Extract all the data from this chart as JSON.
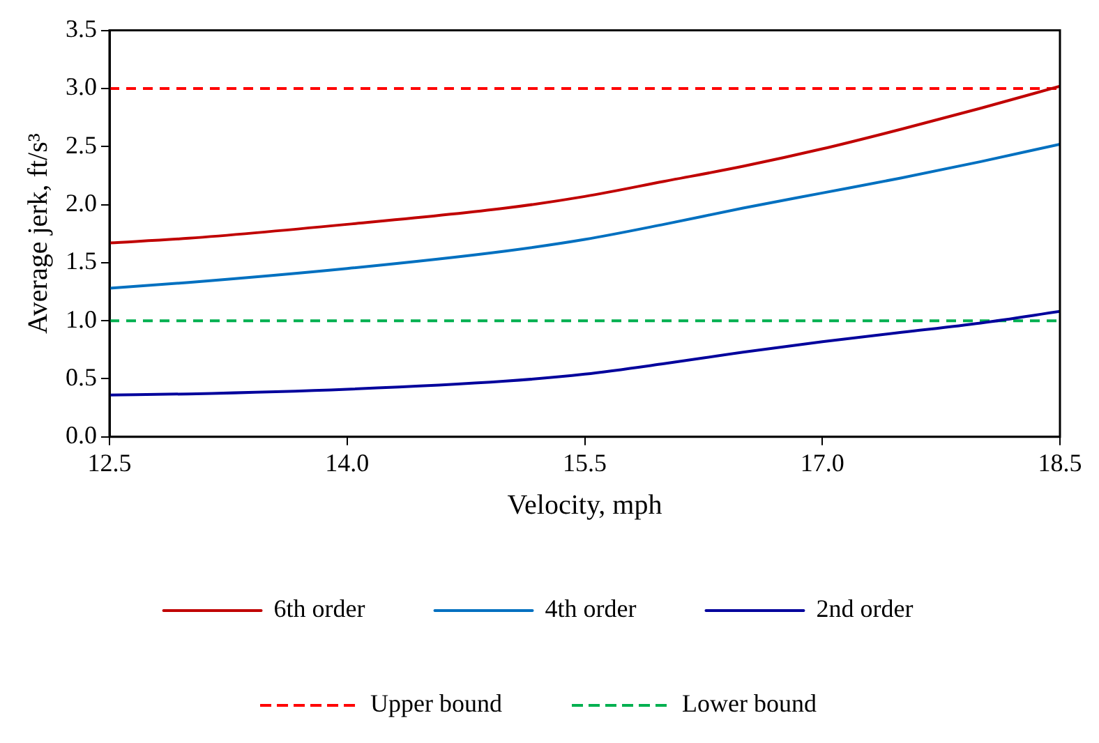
{
  "chart_data": {
    "type": "line",
    "xlabel": "Velocity, mph",
    "ylabel": "Average jerk, ft/s³",
    "x": [
      12.5,
      13,
      14,
      15,
      15.5,
      16,
      16.5,
      17,
      17.5,
      18,
      18.5
    ],
    "series": [
      {
        "name": "6th order",
        "color": "#c00000",
        "values": [
          1.67,
          1.71,
          1.83,
          1.97,
          2.07,
          2.2,
          2.33,
          2.48,
          2.65,
          2.83,
          3.02
        ]
      },
      {
        "name": "4th order",
        "color": "#0070c0",
        "values": [
          1.28,
          1.33,
          1.45,
          1.6,
          1.7,
          1.83,
          1.97,
          2.1,
          2.23,
          2.37,
          2.52
        ]
      },
      {
        "name": "2nd order",
        "color": "#00009c",
        "values": [
          0.36,
          0.37,
          0.41,
          0.48,
          0.54,
          0.63,
          0.73,
          0.82,
          0.9,
          0.98,
          1.08
        ]
      },
      {
        "name": "Upper bound",
        "color": "#ff0000",
        "line_style": "dashed",
        "values": [
          3,
          3,
          3,
          3,
          3,
          3,
          3,
          3,
          3,
          3,
          3
        ]
      },
      {
        "name": "Lower bound",
        "color": "#00b050",
        "line_style": "dashed",
        "values": [
          1,
          1,
          1,
          1,
          1,
          1,
          1,
          1,
          1,
          1,
          1
        ]
      }
    ],
    "xlim": [
      12.5,
      18.5
    ],
    "xticks": [
      12.5,
      {
        "value": 14,
        "label": "14.0"
      },
      15.5,
      {
        "value": 17,
        "label": "17.0"
      },
      18.5
    ],
    "ylim": [
      0,
      3.5
    ],
    "yticks": [
      {
        "value": 0,
        "label": "0.0"
      },
      0.5,
      {
        "value": 1,
        "label": "1.0"
      },
      1.5,
      {
        "value": 2,
        "label": "2.0"
      },
      2.5,
      {
        "value": 3,
        "label": "3.0"
      },
      3.5
    ],
    "grid": false,
    "legend": "bottom",
    "marker": "none",
    "line_style": "solid"
  }
}
